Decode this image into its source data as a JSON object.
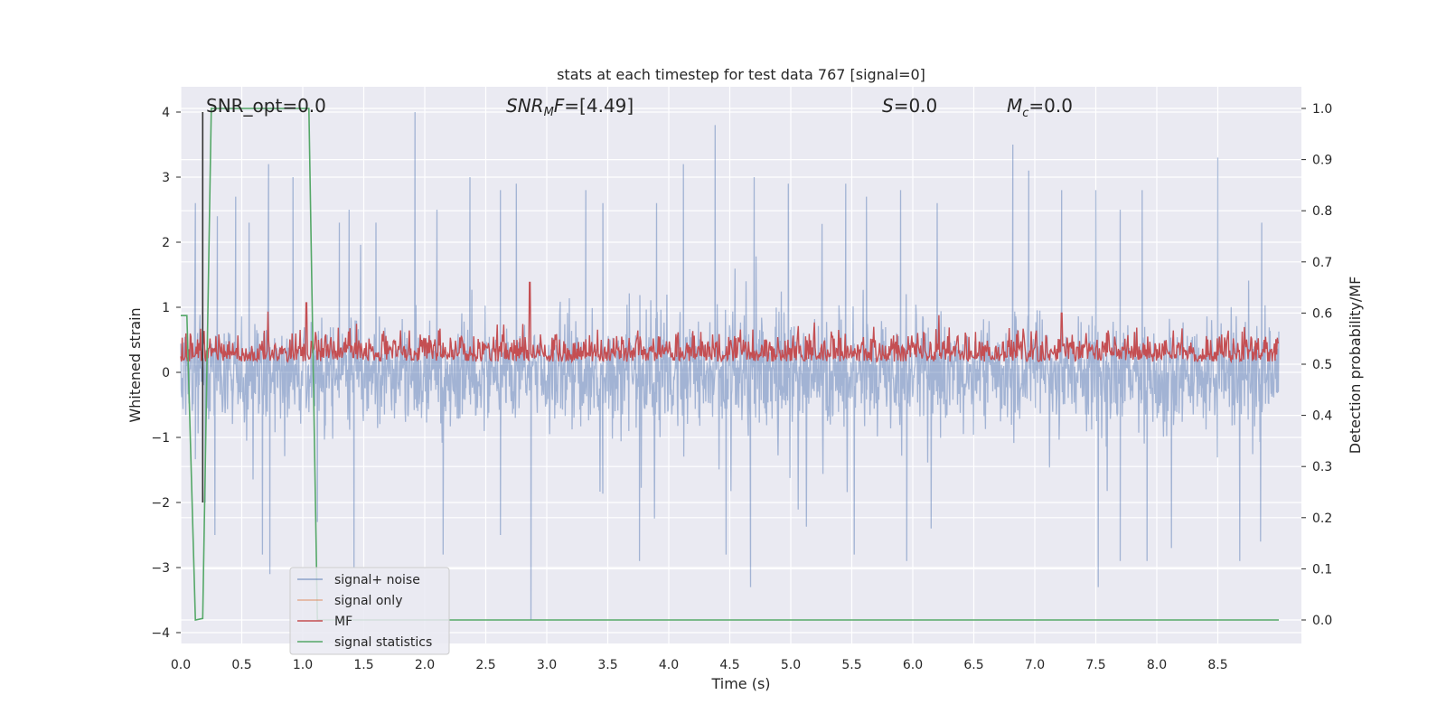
{
  "chart_data": {
    "type": "line",
    "title": "stats at each timestep for test data 767 [signal=0]",
    "xlabel": "Time (s)",
    "ylabel_left": "Whitened strain",
    "ylabel_right": "Detection probability/MF",
    "xlim": [
      0.0,
      9.0
    ],
    "ylim_left": [
      -4.2,
      4.4
    ],
    "ylim_right": [
      -0.047,
      1.047
    ],
    "x_ticks": [
      "0.0",
      "0.5",
      "1.0",
      "1.5",
      "2.0",
      "2.5",
      "3.0",
      "3.5",
      "4.0",
      "4.5",
      "5.0",
      "5.5",
      "6.0",
      "6.5",
      "7.0",
      "7.5",
      "8.0",
      "8.5"
    ],
    "y_ticks_left": [
      "4",
      "3",
      "2",
      "1",
      "0",
      "−1",
      "−2",
      "−3",
      "−4"
    ],
    "y_ticks_right": [
      "1.0",
      "0.9",
      "0.8",
      "0.7",
      "0.6",
      "0.5",
      "0.4",
      "0.3",
      "0.2",
      "0.1",
      "0.0"
    ],
    "grid": true,
    "annotations": {
      "snr_opt": "SNR_opt=0.0",
      "snr_mf_sym": "SNR",
      "snr_mf_sub": "M",
      "snr_mf_tail": "F",
      "snr_mf_val": "=[4.49]",
      "s_sym": "S",
      "s_val": "=0.0",
      "mc_sym": "M",
      "mc_sub": "c",
      "mc_val": "=0.0"
    },
    "legend": {
      "placement": "lower-left",
      "entries": [
        "signal+ noise",
        "signal only",
        "MF",
        "signal statistics"
      ]
    },
    "series": [
      {
        "name": "signal+ noise",
        "axis": "left",
        "color": "#4c72b0",
        "style": "dense noise trace",
        "spikes": [
          [
            0.12,
            2.6
          ],
          [
            0.3,
            2.4
          ],
          [
            0.45,
            2.7
          ],
          [
            0.56,
            2.3
          ],
          [
            0.72,
            3.2
          ],
          [
            0.92,
            3.0
          ],
          [
            1.3,
            2.3
          ],
          [
            1.38,
            2.5
          ],
          [
            1.6,
            2.3
          ],
          [
            1.92,
            4.0
          ],
          [
            2.1,
            2.5
          ],
          [
            2.37,
            3.0
          ],
          [
            2.62,
            2.8
          ],
          [
            2.75,
            2.9
          ],
          [
            3.32,
            2.8
          ],
          [
            3.46,
            2.6
          ],
          [
            3.9,
            2.6
          ],
          [
            4.12,
            3.2
          ],
          [
            4.38,
            3.8
          ],
          [
            4.7,
            3.0
          ],
          [
            4.98,
            2.9
          ],
          [
            5.45,
            2.9
          ],
          [
            5.62,
            2.7
          ],
          [
            5.9,
            2.8
          ],
          [
            6.2,
            2.6
          ],
          [
            6.82,
            3.5
          ],
          [
            6.95,
            3.1
          ],
          [
            7.22,
            2.8
          ],
          [
            7.5,
            2.8
          ],
          [
            7.7,
            2.5
          ],
          [
            7.88,
            2.8
          ],
          [
            8.5,
            3.3
          ],
          [
            8.86,
            2.3
          ]
        ],
        "dips": [
          [
            0.2,
            -2.0
          ],
          [
            0.28,
            -2.5
          ],
          [
            0.67,
            -2.8
          ],
          [
            0.73,
            -3.1
          ],
          [
            1.12,
            -2.3
          ],
          [
            1.42,
            -3.0
          ],
          [
            2.15,
            -2.8
          ],
          [
            2.62,
            -2.5
          ],
          [
            2.87,
            -3.8
          ],
          [
            3.76,
            -2.9
          ],
          [
            4.47,
            -2.8
          ],
          [
            4.67,
            -3.3
          ],
          [
            5.52,
            -2.8
          ],
          [
            5.95,
            -2.9
          ],
          [
            6.15,
            -2.4
          ],
          [
            7.52,
            -3.3
          ],
          [
            7.7,
            -2.9
          ],
          [
            7.92,
            -2.9
          ],
          [
            8.12,
            -2.7
          ],
          [
            8.68,
            -2.9
          ],
          [
            8.85,
            -2.6
          ]
        ]
      },
      {
        "name": "signal only",
        "axis": "left",
        "color": "#dd8452",
        "x": [],
        "y": []
      },
      {
        "name": "MF",
        "axis": "right",
        "color": "#c44e52",
        "range": [
          0.49,
          0.66
        ],
        "peaks": [
          [
            0.08,
            0.56
          ],
          [
            1.03,
            0.62
          ],
          [
            2.86,
            0.66
          ],
          [
            7.22,
            0.6
          ]
        ]
      },
      {
        "name": "signal statistics",
        "axis": "right",
        "color": "#55a868",
        "x": [
          0.0,
          0.05,
          0.12,
          0.18,
          0.25,
          1.05,
          1.12,
          9.0
        ],
        "y": [
          0.595,
          0.595,
          0.0,
          0.003,
          1.0,
          1.0,
          0.0,
          0.0
        ]
      }
    ],
    "marker_line": {
      "x": 0.18,
      "color": "#333333",
      "y_range": [
        -2.0,
        4.0
      ]
    }
  }
}
